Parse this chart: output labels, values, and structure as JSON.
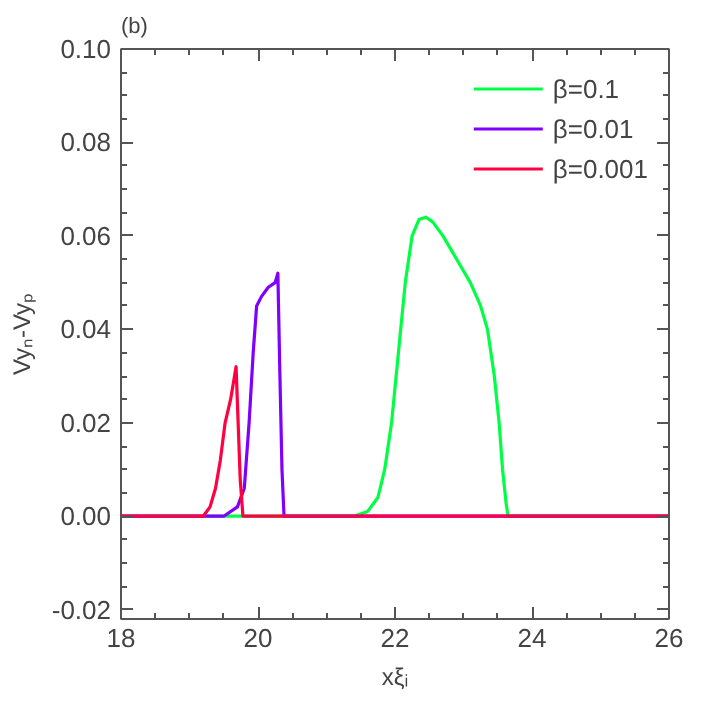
{
  "chart_data": {
    "type": "line",
    "title": "(b)",
    "xlabel": "xξᵢ",
    "ylabel": "Vyₙ-Vyₚ",
    "xlim": [
      18,
      26
    ],
    "ylim": [
      -0.022,
      0.1
    ],
    "xticks": [
      18,
      20,
      22,
      24,
      26
    ],
    "yticks": [
      {
        "value": -0.02,
        "label": "-0.02"
      },
      {
        "value": 0,
        "label": "0.00"
      },
      {
        "value": 0.02,
        "label": "0.02"
      },
      {
        "value": 0.04,
        "label": "0.04"
      },
      {
        "value": 0.06,
        "label": "0.06"
      },
      {
        "value": 0.08,
        "label": "0.08"
      },
      {
        "value": 0.1,
        "label": "0.10"
      }
    ],
    "grid": false,
    "legend": "top right",
    "line_style": "solid",
    "marker": "none",
    "series": [
      {
        "name": "β=0.1",
        "color": "#00ff44",
        "x": [
          18,
          21.4,
          21.6,
          21.75,
          21.85,
          21.95,
          22.05,
          22.15,
          22.25,
          22.35,
          22.45,
          22.55,
          22.7,
          22.9,
          23.1,
          23.25,
          23.35,
          23.45,
          23.52,
          23.57,
          23.62,
          23.65,
          26
        ],
        "values": [
          0,
          0,
          0.001,
          0.004,
          0.01,
          0.02,
          0.035,
          0.05,
          0.06,
          0.0635,
          0.064,
          0.063,
          0.06,
          0.055,
          0.05,
          0.045,
          0.04,
          0.03,
          0.02,
          0.01,
          0.003,
          0,
          0
        ]
      },
      {
        "name": "β=0.01",
        "color": "#8000ff",
        "x": [
          18,
          19.5,
          19.7,
          19.8,
          19.87,
          19.93,
          19.98,
          20.05,
          20.15,
          20.25,
          20.29,
          20.32,
          20.35,
          20.38,
          26
        ],
        "values": [
          0,
          0,
          0.002,
          0.006,
          0.02,
          0.035,
          0.045,
          0.047,
          0.049,
          0.05,
          0.052,
          0.03,
          0.01,
          0,
          0
        ]
      },
      {
        "name": "β=0.001",
        "color": "#ff0040",
        "x": [
          18,
          19.2,
          19.3,
          19.38,
          19.45,
          19.52,
          19.6,
          19.68,
          19.71,
          19.74,
          19.78,
          26
        ],
        "values": [
          0,
          0,
          0.002,
          0.006,
          0.012,
          0.02,
          0.025,
          0.032,
          0.02,
          0.008,
          0,
          0
        ]
      }
    ]
  }
}
